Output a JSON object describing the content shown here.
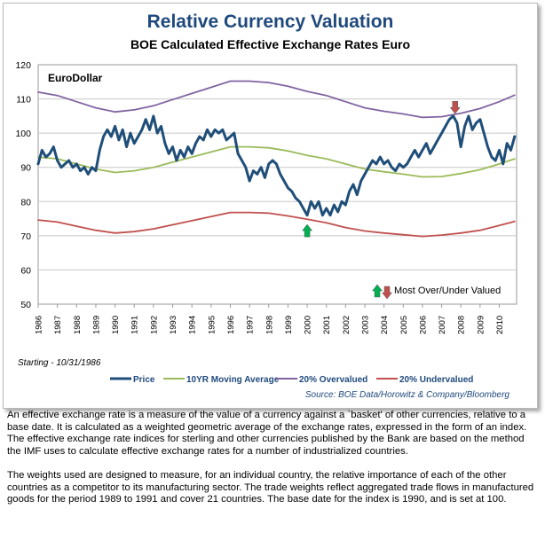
{
  "chart_data": {
    "type": "line",
    "title": "Relative Currency Valuation",
    "subtitle": "BOE Calculated Effective Exchange Rates Euro",
    "panel_label": "EuroDollar",
    "start_note": "Starting - 10/31/1986",
    "source": "Source: BOE Data/Horowitz & Company/Bloomberg",
    "annotation": "Most Over/Under Valued",
    "ylim": [
      50,
      120
    ],
    "yticks": [
      50,
      60,
      70,
      80,
      90,
      100,
      110,
      120
    ],
    "xlim": [
      1986,
      2010.9
    ],
    "xticks": [
      "1986",
      "1987",
      "1988",
      "1989",
      "1990",
      "1991",
      "1992",
      "1993",
      "1994",
      "1995",
      "1996",
      "1997",
      "1998",
      "1999",
      "2000",
      "2001",
      "2002",
      "2003",
      "2004",
      "2005",
      "2006",
      "2007",
      "2008",
      "2009",
      "2010"
    ],
    "legend_position": "bottom",
    "grid": true,
    "markers": [
      {
        "kind": "down",
        "x": 2007.7,
        "y": 107.5,
        "color": "#c0504d"
      },
      {
        "kind": "up",
        "x": 2000.0,
        "y": 71.5,
        "color": "#00b050"
      }
    ],
    "series": [
      {
        "name": "Price",
        "color": "#1f4e79",
        "x": [
          1986.0,
          1986.2,
          1986.4,
          1986.6,
          1986.8,
          1987.0,
          1987.2,
          1987.4,
          1987.6,
          1987.8,
          1988.0,
          1988.2,
          1988.4,
          1988.6,
          1988.8,
          1989.0,
          1989.2,
          1989.4,
          1989.6,
          1989.8,
          1990.0,
          1990.2,
          1990.4,
          1990.6,
          1990.8,
          1991.0,
          1991.2,
          1991.4,
          1991.6,
          1991.8,
          1992.0,
          1992.2,
          1992.4,
          1992.6,
          1992.8,
          1993.0,
          1993.2,
          1993.4,
          1993.6,
          1993.8,
          1994.0,
          1994.2,
          1994.4,
          1994.6,
          1994.8,
          1995.0,
          1995.2,
          1995.4,
          1995.6,
          1995.8,
          1996.0,
          1996.2,
          1996.4,
          1996.6,
          1996.8,
          1997.0,
          1997.2,
          1997.4,
          1997.6,
          1997.8,
          1998.0,
          1998.2,
          1998.4,
          1998.6,
          1998.8,
          1999.0,
          1999.2,
          1999.4,
          1999.6,
          1999.8,
          2000.0,
          2000.2,
          2000.4,
          2000.6,
          2000.8,
          2001.0,
          2001.2,
          2001.4,
          2001.6,
          2001.8,
          2002.0,
          2002.2,
          2002.4,
          2002.6,
          2002.8,
          2003.0,
          2003.2,
          2003.4,
          2003.6,
          2003.8,
          2004.0,
          2004.2,
          2004.4,
          2004.6,
          2004.8,
          2005.0,
          2005.2,
          2005.4,
          2005.6,
          2005.8,
          2006.0,
          2006.2,
          2006.4,
          2006.6,
          2006.8,
          2007.0,
          2007.2,
          2007.4,
          2007.6,
          2007.8,
          2008.0,
          2008.2,
          2008.4,
          2008.6,
          2008.8,
          2009.0,
          2009.2,
          2009.4,
          2009.6,
          2009.8,
          2010.0,
          2010.2,
          2010.4,
          2010.6,
          2010.8
        ],
        "values": [
          91,
          95,
          93,
          94,
          96,
          92,
          90,
          91,
          92,
          90,
          91,
          89,
          90,
          88,
          90,
          89,
          95,
          99,
          101,
          99,
          102,
          98,
          101,
          96,
          100,
          97,
          99,
          101,
          104,
          101,
          105,
          100,
          102,
          97,
          94,
          96,
          92,
          95,
          93,
          96,
          94,
          97,
          99,
          98,
          101,
          99,
          101,
          100,
          101,
          98,
          99,
          100,
          94,
          92,
          90,
          86,
          89,
          88,
          90,
          87,
          91,
          92,
          91,
          88,
          86,
          84,
          83,
          81,
          80,
          78,
          76,
          80,
          78,
          80,
          76,
          78,
          76,
          79,
          77,
          80,
          79,
          83,
          85,
          82,
          86,
          88,
          90,
          92,
          91,
          93,
          91,
          92,
          90,
          89,
          91,
          90,
          91,
          93,
          95,
          93,
          95,
          97,
          94,
          96,
          98,
          100,
          102,
          104,
          105,
          103,
          96,
          102,
          105,
          101,
          103,
          104,
          100,
          96,
          93,
          92,
          95,
          91,
          97,
          95,
          99
        ]
      },
      {
        "name": "10YR Moving Average",
        "color": "#9bbb59",
        "x": [
          1986.0,
          1987.0,
          1988.0,
          1989.0,
          1990.0,
          1991.0,
          1992.0,
          1993.0,
          1994.0,
          1995.0,
          1996.0,
          1997.0,
          1998.0,
          1999.0,
          2000.0,
          2001.0,
          2002.0,
          2003.0,
          2004.0,
          2005.0,
          2006.0,
          2007.0,
          2008.0,
          2009.0,
          2010.0,
          2010.8
        ],
        "values": [
          93,
          92.5,
          91,
          89.5,
          88.5,
          89,
          90,
          91.5,
          93,
          94.5,
          96,
          96,
          95.7,
          94.8,
          93.5,
          92.5,
          91,
          89.5,
          88.7,
          88,
          87.2,
          87.3,
          88.2,
          89.3,
          91,
          92.5
        ]
      },
      {
        "name": "20% Overvalued",
        "color": "#8064a2",
        "x": [
          1986.0,
          1987.0,
          1988.0,
          1989.0,
          1990.0,
          1991.0,
          1992.0,
          1993.0,
          1994.0,
          1995.0,
          1996.0,
          1997.0,
          1998.0,
          1999.0,
          2000.0,
          2001.0,
          2002.0,
          2003.0,
          2004.0,
          2005.0,
          2006.0,
          2007.0,
          2008.0,
          2009.0,
          2010.0,
          2010.8
        ],
        "values": [
          112,
          111,
          109.2,
          107.4,
          106.2,
          106.8,
          108,
          109.8,
          111.6,
          113.4,
          115.2,
          115.2,
          114.8,
          113.7,
          112.2,
          111,
          109.2,
          107.4,
          106.4,
          105.6,
          104.6,
          104.8,
          105.8,
          107.2,
          109.2,
          111.1
        ]
      },
      {
        "name": "20% Undervalued",
        "color": "#c0504d",
        "x": [
          1986.0,
          1987.0,
          1988.0,
          1989.0,
          1990.0,
          1991.0,
          1992.0,
          1993.0,
          1994.0,
          1995.0,
          1996.0,
          1997.0,
          1998.0,
          1999.0,
          2000.0,
          2001.0,
          2002.0,
          2003.0,
          2004.0,
          2005.0,
          2006.0,
          2007.0,
          2008.0,
          2009.0,
          2010.0,
          2010.8
        ],
        "values": [
          74.6,
          74,
          72.8,
          71.6,
          70.8,
          71.2,
          72,
          73.2,
          74.4,
          75.6,
          76.8,
          76.8,
          76.6,
          75.8,
          74.8,
          73.8,
          72.4,
          71.4,
          70.8,
          70.3,
          69.8,
          70.2,
          70.8,
          71.6,
          73,
          74.2
        ]
      }
    ]
  },
  "description": {
    "paragraph1": "An effective exchange rate is a measure of the value of a currency against a `basket' of other currencies, relative to a base date. It is calculated as a weighted geometric average of the exchange rates, expressed in the form of an index. The effective exchange rate indices for sterling and other currencies published by the Bank are based on the method the IMF uses to calculate effective exchange rates for a number of industrialized countries.",
    "paragraph2": "The weights used are designed to measure, for an individual country, the relative importance of each of the other countries as a competitor to its manufacturing sector. The trade weights reflect aggregated trade flows in manufactured goods for the period 1989 to 1991 and cover 21 countries. The base date for the index is 1990, and is set at 100."
  }
}
